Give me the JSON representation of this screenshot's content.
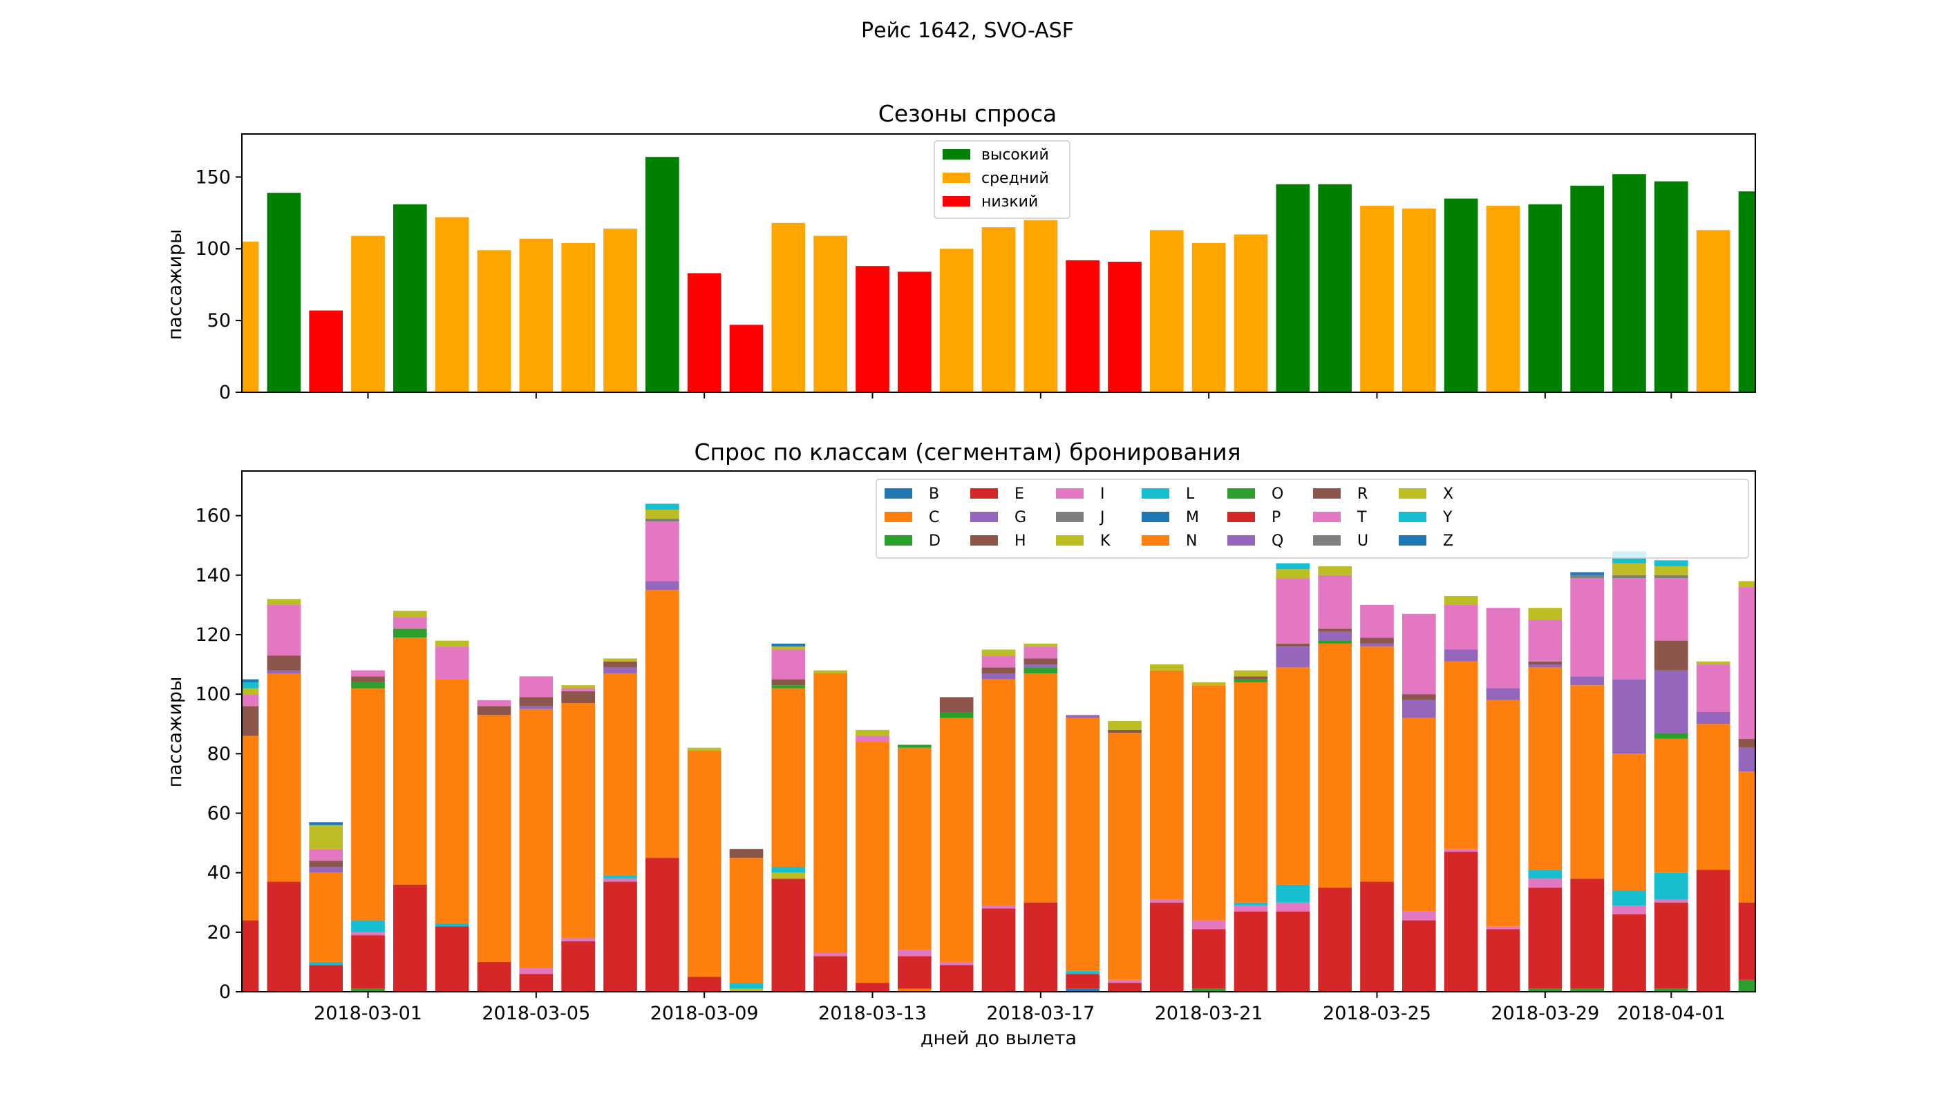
{
  "figure": {
    "suptitle": "Рейс 1642, SVO-ASF"
  },
  "chart_data": [
    {
      "type": "bar",
      "title": "Сезоны спроса",
      "xlabel": "",
      "ylabel": "пассажиры",
      "ylim": [
        0,
        180
      ],
      "yticks": [
        0,
        50,
        100,
        150
      ],
      "categories": [
        "2018-02-26",
        "2018-02-27",
        "2018-02-28",
        "2018-03-01",
        "2018-03-02",
        "2018-03-03",
        "2018-03-04",
        "2018-03-05",
        "2018-03-06",
        "2018-03-07",
        "2018-03-08",
        "2018-03-09",
        "2018-03-10",
        "2018-03-11",
        "2018-03-12",
        "2018-03-13",
        "2018-03-14",
        "2018-03-15",
        "2018-03-16",
        "2018-03-17",
        "2018-03-18",
        "2018-03-19",
        "2018-03-20",
        "2018-03-21",
        "2018-03-22",
        "2018-03-23",
        "2018-03-24",
        "2018-03-25",
        "2018-03-26",
        "2018-03-27",
        "2018-03-28",
        "2018-03-29",
        "2018-03-30",
        "2018-03-31",
        "2018-04-01",
        "2018-04-02",
        "2018-04-03"
      ],
      "values": [
        105,
        139,
        57,
        109,
        131,
        122,
        99,
        107,
        104,
        114,
        164,
        83,
        47,
        118,
        109,
        88,
        84,
        100,
        115,
        120,
        92,
        91,
        113,
        104,
        110,
        145,
        145,
        130,
        128,
        135,
        130,
        131,
        144,
        152,
        147,
        113,
        140
      ],
      "season": [
        "medium",
        "high",
        "low",
        "medium",
        "high",
        "medium",
        "medium",
        "medium",
        "medium",
        "medium",
        "high",
        "low",
        "low",
        "medium",
        "medium",
        "low",
        "low",
        "medium",
        "medium",
        "medium",
        "low",
        "low",
        "medium",
        "medium",
        "medium",
        "high",
        "high",
        "medium",
        "medium",
        "high",
        "medium",
        "high",
        "high",
        "high",
        "high",
        "medium",
        "high"
      ],
      "legend": {
        "position": "top-center",
        "entries": [
          {
            "key": "high",
            "label": "высокий",
            "color": "#008000"
          },
          {
            "key": "medium",
            "label": "средний",
            "color": "#ffa500"
          },
          {
            "key": "low",
            "label": "низкий",
            "color": "#ff0000"
          }
        ]
      }
    },
    {
      "type": "bar",
      "stacked": true,
      "title": "Спрос по классам (сегментам) бронирования",
      "xlabel": "дней до вылета",
      "ylabel": "пассажиры",
      "ylim": [
        0,
        175
      ],
      "yticks": [
        0,
        20,
        40,
        60,
        80,
        100,
        120,
        140,
        160
      ],
      "xticks": [
        {
          "index": 3,
          "label": "2018-03-01"
        },
        {
          "index": 7,
          "label": "2018-03-05"
        },
        {
          "index": 11,
          "label": "2018-03-09"
        },
        {
          "index": 15,
          "label": "2018-03-13"
        },
        {
          "index": 19,
          "label": "2018-03-17"
        },
        {
          "index": 23,
          "label": "2018-03-21"
        },
        {
          "index": 27,
          "label": "2018-03-25"
        },
        {
          "index": 31,
          "label": "2018-03-29"
        },
        {
          "index": 34,
          "label": "2018-04-01"
        }
      ],
      "categories": [
        "2018-02-26",
        "2018-02-27",
        "2018-02-28",
        "2018-03-01",
        "2018-03-02",
        "2018-03-03",
        "2018-03-04",
        "2018-03-05",
        "2018-03-06",
        "2018-03-07",
        "2018-03-08",
        "2018-03-09",
        "2018-03-10",
        "2018-03-11",
        "2018-03-12",
        "2018-03-13",
        "2018-03-14",
        "2018-03-15",
        "2018-03-16",
        "2018-03-17",
        "2018-03-18",
        "2018-03-19",
        "2018-03-20",
        "2018-03-21",
        "2018-03-22",
        "2018-03-23",
        "2018-03-24",
        "2018-03-25",
        "2018-03-26",
        "2018-03-27",
        "2018-03-28",
        "2018-03-29",
        "2018-03-30",
        "2018-03-31",
        "2018-04-01",
        "2018-04-02",
        "2018-04-03"
      ],
      "legend": {
        "position": "top-right",
        "columns": 10
      },
      "series": [
        {
          "name": "B",
          "color": "#1f77b4",
          "values": [
            0,
            0,
            0,
            0,
            0,
            0,
            0,
            0,
            0,
            0,
            0,
            0,
            0,
            0,
            0,
            0,
            0,
            0,
            0,
            0,
            1,
            0,
            0,
            0,
            0,
            0,
            0,
            0,
            0,
            0,
            0,
            0,
            0,
            0,
            0,
            0,
            0
          ]
        },
        {
          "name": "C",
          "color": "#ff7f0e",
          "values": [
            0,
            0,
            0,
            0,
            0,
            0,
            0,
            0,
            0,
            0,
            0,
            0,
            0,
            0,
            0,
            0,
            1,
            0,
            0,
            0,
            0,
            0,
            0,
            0,
            0,
            0,
            0,
            0,
            0,
            0,
            0,
            0,
            0,
            0,
            0,
            0,
            0
          ]
        },
        {
          "name": "D",
          "color": "#2ca02c",
          "values": [
            0,
            0,
            0,
            1,
            0,
            0,
            0,
            0,
            0,
            0,
            0,
            0,
            0,
            0,
            0,
            0,
            0,
            0,
            0,
            0,
            0,
            0,
            0,
            1,
            0,
            0,
            0,
            0,
            0,
            0,
            0,
            1,
            1,
            0,
            1,
            0,
            4
          ]
        },
        {
          "name": "E",
          "color": "#d62728",
          "values": [
            24,
            37,
            9,
            18,
            36,
            22,
            10,
            6,
            17,
            37,
            45,
            5,
            0,
            38,
            12,
            3,
            11,
            9,
            28,
            30,
            5,
            3,
            30,
            20,
            27,
            27,
            35,
            37,
            24,
            47,
            21,
            34,
            37,
            26,
            29,
            41,
            26
          ]
        },
        {
          "name": "G",
          "color": "#9467bd",
          "values": [
            0,
            0,
            0,
            0,
            0,
            0,
            0,
            0,
            0,
            0,
            0,
            0,
            0,
            0,
            0,
            0,
            0,
            0,
            0,
            0,
            0,
            0,
            0,
            0,
            0,
            0,
            0,
            0,
            0,
            0,
            0,
            0,
            0,
            0,
            0,
            0,
            0
          ]
        },
        {
          "name": "H",
          "color": "#8c564b",
          "values": [
            0,
            0,
            0,
            0,
            0,
            0,
            0,
            0,
            0,
            0,
            0,
            0,
            0,
            0,
            0,
            0,
            0,
            0,
            0,
            0,
            0,
            0,
            0,
            0,
            0,
            0,
            0,
            0,
            0,
            0,
            0,
            0,
            0,
            0,
            0,
            0,
            0
          ]
        },
        {
          "name": "I",
          "color": "#e377c2",
          "values": [
            0,
            0,
            0,
            1,
            0,
            0,
            0,
            2,
            1,
            1,
            0,
            0,
            0,
            0,
            1,
            0,
            2,
            1,
            1,
            0,
            0,
            1,
            1,
            3,
            2,
            3,
            0,
            0,
            3,
            1,
            1,
            3,
            0,
            3,
            1,
            0,
            0
          ]
        },
        {
          "name": "J",
          "color": "#7f7f7f",
          "values": [
            0,
            0,
            0,
            0,
            0,
            0,
            0,
            0,
            0,
            0,
            0,
            0,
            0,
            0,
            0,
            0,
            0,
            0,
            0,
            0,
            0,
            0,
            0,
            0,
            0,
            0,
            0,
            0,
            0,
            0,
            0,
            0,
            0,
            0,
            0,
            0,
            0
          ]
        },
        {
          "name": "K",
          "color": "#bcbd22",
          "values": [
            0,
            0,
            0,
            0,
            0,
            0,
            0,
            0,
            0,
            0,
            0,
            0,
            1,
            2,
            0,
            0,
            0,
            0,
            0,
            0,
            0,
            0,
            0,
            0,
            0,
            0,
            0,
            0,
            0,
            0,
            0,
            0,
            0,
            0,
            0,
            0,
            0
          ]
        },
        {
          "name": "L",
          "color": "#17becf",
          "values": [
            0,
            0,
            1,
            4,
            0,
            1,
            0,
            0,
            0,
            1,
            0,
            0,
            2,
            2,
            0,
            0,
            0,
            0,
            0,
            0,
            1,
            0,
            0,
            0,
            1,
            6,
            0,
            0,
            0,
            0,
            0,
            3,
            0,
            5,
            9,
            0,
            0
          ]
        },
        {
          "name": "M",
          "color": "#1f77b4",
          "values": [
            0,
            0,
            0,
            0,
            0,
            0,
            0,
            0,
            0,
            0,
            0,
            0,
            0,
            0,
            0,
            0,
            0,
            0,
            0,
            0,
            0,
            0,
            0,
            0,
            0,
            0,
            0,
            0,
            0,
            0,
            0,
            0,
            0,
            0,
            0,
            0,
            0
          ]
        },
        {
          "name": "N",
          "color": "#ff7f0e",
          "values": [
            62,
            70,
            30,
            78,
            83,
            82,
            83,
            87,
            79,
            68,
            90,
            76,
            42,
            60,
            94,
            81,
            68,
            82,
            76,
            77,
            85,
            83,
            77,
            79,
            74,
            73,
            82,
            79,
            65,
            63,
            76,
            68,
            65,
            46,
            45,
            49,
            44
          ]
        },
        {
          "name": "O",
          "color": "#2ca02c",
          "values": [
            0,
            0,
            0,
            2,
            3,
            0,
            0,
            0,
            0,
            0,
            0,
            0,
            0,
            1,
            0,
            0,
            1,
            2,
            0,
            2,
            0,
            0,
            0,
            0,
            1,
            0,
            1,
            0,
            0,
            0,
            0,
            0,
            0,
            0,
            2,
            0,
            0
          ]
        },
        {
          "name": "P",
          "color": "#d62728",
          "values": [
            0,
            0,
            0,
            0,
            0,
            0,
            0,
            0,
            0,
            0,
            0,
            0,
            0,
            0,
            0,
            0,
            0,
            0,
            0,
            0,
            0,
            0,
            0,
            0,
            0,
            0,
            0,
            0,
            0,
            0,
            0,
            0,
            0,
            0,
            0,
            0,
            0
          ]
        },
        {
          "name": "Q",
          "color": "#9467bd",
          "values": [
            0,
            1,
            2,
            0,
            0,
            0,
            0,
            1,
            0,
            2,
            3,
            0,
            0,
            0,
            0,
            0,
            0,
            0,
            2,
            1,
            1,
            0,
            0,
            0,
            0,
            7,
            3,
            1,
            6,
            4,
            4,
            1,
            3,
            25,
            21,
            4,
            8
          ]
        },
        {
          "name": "R",
          "color": "#8c564b",
          "values": [
            10,
            5,
            2,
            2,
            0,
            0,
            3,
            3,
            4,
            2,
            0,
            0,
            3,
            2,
            0,
            0,
            0,
            5,
            2,
            2,
            0,
            1,
            0,
            0,
            1,
            1,
            1,
            2,
            2,
            0,
            0,
            1,
            0,
            0,
            10,
            0,
            3
          ]
        },
        {
          "name": "T",
          "color": "#e377c2",
          "values": [
            4,
            17,
            4,
            2,
            4,
            11,
            2,
            7,
            1,
            0,
            20,
            0,
            0,
            10,
            0,
            2,
            0,
            0,
            4,
            4,
            0,
            0,
            0,
            0,
            0,
            22,
            18,
            11,
            27,
            15,
            27,
            14,
            33,
            34,
            21,
            16,
            51
          ]
        },
        {
          "name": "U",
          "color": "#7f7f7f",
          "values": [
            0,
            0,
            0,
            0,
            0,
            0,
            0,
            0,
            0,
            0,
            1,
            0,
            0,
            0,
            0,
            0,
            0,
            0,
            0,
            0,
            0,
            0,
            0,
            0,
            0,
            0,
            0,
            0,
            0,
            0,
            0,
            0,
            1,
            1,
            1,
            0,
            0
          ]
        },
        {
          "name": "X",
          "color": "#bcbd22",
          "values": [
            2,
            2,
            8,
            0,
            2,
            2,
            0,
            0,
            1,
            1,
            3,
            1,
            0,
            1,
            1,
            2,
            0,
            0,
            2,
            1,
            0,
            3,
            2,
            1,
            2,
            3,
            3,
            0,
            0,
            3,
            0,
            4,
            0,
            4,
            3,
            1,
            2
          ]
        },
        {
          "name": "Y",
          "color": "#17becf",
          "values": [
            2,
            0,
            0,
            0,
            0,
            0,
            0,
            0,
            0,
            0,
            2,
            0,
            0,
            0,
            0,
            0,
            0,
            0,
            0,
            0,
            0,
            0,
            0,
            0,
            0,
            2,
            0,
            0,
            0,
            0,
            0,
            0,
            0,
            4,
            2,
            0,
            0
          ]
        },
        {
          "name": "Z",
          "color": "#1f77b4",
          "values": [
            1,
            0,
            1,
            0,
            0,
            0,
            0,
            0,
            0,
            0,
            0,
            0,
            0,
            1,
            0,
            0,
            0,
            0,
            0,
            0,
            0,
            0,
            0,
            0,
            0,
            0,
            0,
            0,
            0,
            0,
            0,
            0,
            1,
            0,
            0,
            0,
            0
          ]
        }
      ]
    }
  ]
}
